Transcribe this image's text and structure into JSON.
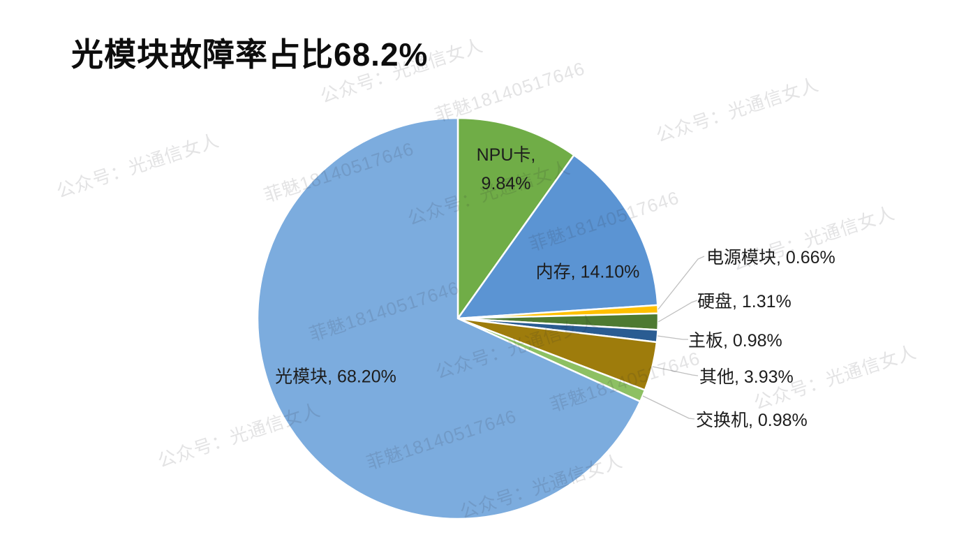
{
  "watermarks": {
    "account": "公众号：光通信女人",
    "id_text": "菲魅18140517646"
  },
  "chart_data": {
    "type": "pie",
    "title": "光模块故障率占比68.2%",
    "legend": "none",
    "start_angle_deg": 0,
    "direction": "clockwise",
    "units": "percent",
    "slices": [
      {
        "name": "NPU卡",
        "value": 9.84,
        "color": "#70AD47",
        "label": "NPU卡,\n9.84%",
        "placement": "inside"
      },
      {
        "name": "内存",
        "value": 14.1,
        "color": "#5B94D3",
        "label": "内存, 14.10%",
        "placement": "inside"
      },
      {
        "name": "电源模块",
        "value": 0.66,
        "color": "#FFC000",
        "label": "电源模块, 0.66%",
        "placement": "callout"
      },
      {
        "name": "硬盘",
        "value": 1.31,
        "color": "#4E7A31",
        "label": "硬盘, 1.31%",
        "placement": "callout"
      },
      {
        "name": "主板",
        "value": 0.98,
        "color": "#2A5C92",
        "label": "主板, 0.98%",
        "placement": "callout"
      },
      {
        "name": "其他",
        "value": 3.93,
        "color": "#9E7C0C",
        "label": "其他, 3.93%",
        "placement": "callout"
      },
      {
        "name": "交换机",
        "value": 0.98,
        "color": "#8DC063",
        "label": "交换机, 0.98%",
        "placement": "callout"
      },
      {
        "name": "光模块",
        "value": 68.2,
        "color": "#7CACDE",
        "label": "光模块, 68.20%",
        "placement": "inside"
      }
    ],
    "leader_line_color": "#BFBFBF",
    "slice_border_color": "#FFFFFF"
  }
}
